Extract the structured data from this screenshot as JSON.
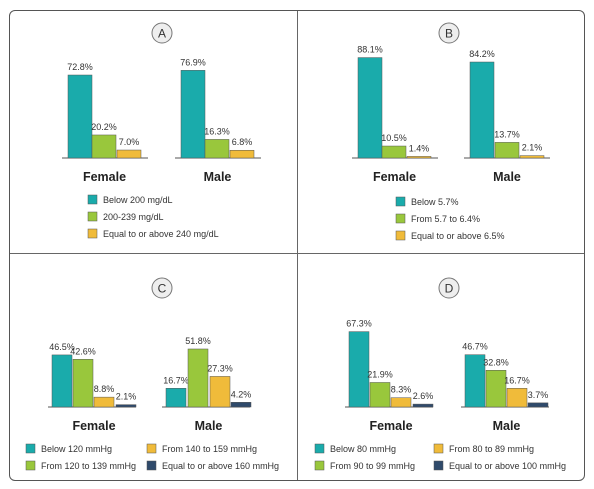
{
  "chart_data": [
    {
      "type": "bar",
      "panel_label": "A",
      "categories": [
        "Female",
        "Male"
      ],
      "series": [
        {
          "name": "Below 200 mg/dL",
          "values": [
            72.8,
            76.9
          ]
        },
        {
          "name": "200-239 mg/dL",
          "values": [
            20.2,
            16.3
          ]
        },
        {
          "name": "Equal to or above 240 mg/dL",
          "values": [
            7.0,
            6.8
          ]
        }
      ],
      "data_labels": [
        [
          "72.8%",
          "20.2%",
          "7.0%"
        ],
        [
          "76.9%",
          "16.3%",
          "6.8%"
        ]
      ],
      "legend_columns": 1,
      "grid": false
    },
    {
      "type": "bar",
      "panel_label": "B",
      "categories": [
        "Female",
        "Male"
      ],
      "series": [
        {
          "name": "Below 5.7%",
          "values": [
            88.1,
            84.2
          ]
        },
        {
          "name": "From 5.7 to 6.4%",
          "values": [
            10.5,
            13.7
          ]
        },
        {
          "name": "Equal to or above 6.5%",
          "values": [
            1.4,
            2.1
          ]
        }
      ],
      "data_labels": [
        [
          "88.1%",
          "10.5%",
          "1.4%"
        ],
        [
          "84.2%",
          "13.7%",
          "2.1%"
        ]
      ],
      "legend_columns": 1,
      "grid": false
    },
    {
      "type": "bar",
      "panel_label": "C",
      "categories": [
        "Female",
        "Male"
      ],
      "series": [
        {
          "name": "Below 120 mmHg",
          "values": [
            46.5,
            16.7
          ]
        },
        {
          "name": "From 120 to 139 mmHg",
          "values": [
            42.6,
            51.8
          ]
        },
        {
          "name": "From 140 to 159 mmHg",
          "values": [
            8.8,
            27.3
          ]
        },
        {
          "name": "Equal to or above 160 mmHg",
          "values": [
            2.1,
            4.2
          ]
        }
      ],
      "data_labels": [
        [
          "46.5%",
          "42.6%",
          "8.8%",
          "2.1%"
        ],
        [
          "16.7%",
          "51.8%",
          "27.3%",
          "4.2%"
        ]
      ],
      "legend_columns": 2,
      "grid": false
    },
    {
      "type": "bar",
      "panel_label": "D",
      "categories": [
        "Female",
        "Male"
      ],
      "series": [
        {
          "name": "Below 80 mmHg",
          "values": [
            67.3,
            46.7
          ]
        },
        {
          "name": "From 90 to 99 mmHg",
          "values": [
            21.9,
            32.8
          ]
        },
        {
          "name": "From 80 to 89 mmHg",
          "values": [
            8.3,
            16.7
          ]
        },
        {
          "name": "Equal to or above 100 mmHg",
          "values": [
            2.6,
            3.7
          ]
        }
      ],
      "data_labels": [
        [
          "67.3%",
          "21.9%",
          "8.3%",
          "2.6%"
        ],
        [
          "46.7%",
          "32.8%",
          "16.7%",
          "3.7%"
        ]
      ],
      "legend_columns": 2,
      "grid": false
    }
  ],
  "colors": {
    "teal": "#1aabab",
    "green": "#99c73c",
    "yellow": "#f0bb3a",
    "navy": "#2f4a6b"
  },
  "panel_series_colors": [
    [
      "#1aabab",
      "#99c73c",
      "#f0bb3a"
    ],
    [
      "#1aabab",
      "#99c73c",
      "#f0bb3a"
    ],
    [
      "#1aabab",
      "#99c73c",
      "#f0bb3a",
      "#2f4a6b"
    ],
    [
      "#1aabab",
      "#99c73c",
      "#f0bb3a",
      "#2f4a6b"
    ]
  ]
}
